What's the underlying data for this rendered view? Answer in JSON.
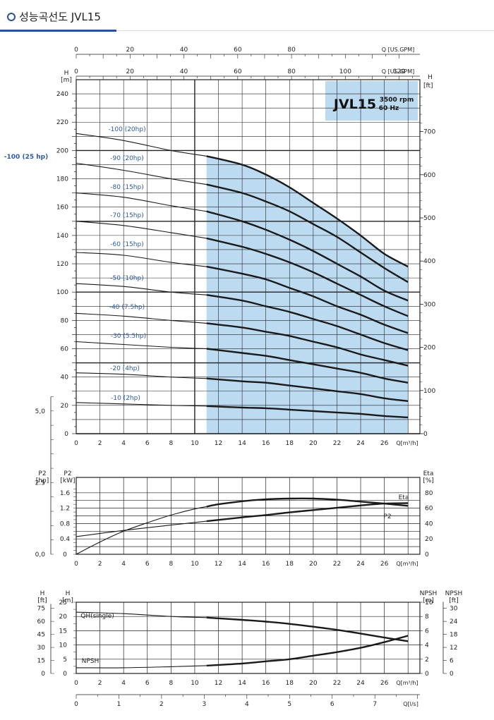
{
  "header": {
    "title": "성능곡선도 JVL15"
  },
  "colors": {
    "shade": "#bcdaf0",
    "curve": "#1a1a1a",
    "label_blue": "#2c5aa0",
    "grid": "#222222"
  },
  "chart_data": [
    {
      "type": "line",
      "panel": "head",
      "title": "JVL15",
      "subtitle_lines": [
        "3500 rpm",
        "60 Hz"
      ],
      "xlabel": "Q[m³/h]",
      "ylabel_left": "H [m]",
      "ylabel_right": "H [ft]",
      "xlim": [
        0,
        29
      ],
      "ylim": [
        0,
        250
      ],
      "x_ticks": [
        "0",
        "2",
        "4",
        "6",
        "8",
        "10",
        "12",
        "14",
        "16",
        "18",
        "20",
        "22",
        "24",
        "26"
      ],
      "y_ticks_left": [
        "0",
        "20",
        "40",
        "60",
        "80",
        "100",
        "120",
        "140",
        "160",
        "180",
        "200",
        "220",
        "240"
      ],
      "y_ticks_right": [
        "0",
        "100",
        "200",
        "300",
        "400",
        "500",
        "600",
        "700"
      ],
      "top_axis_gpm_outer": {
        "label": "Q [US.GPM]",
        "ticks": [
          "0",
          "20",
          "40",
          "60",
          "80"
        ]
      },
      "top_axis_gpm_inner": {
        "label": "Q [US.GPM]",
        "ticks": [
          "0",
          "20",
          "40",
          "60",
          "80",
          "100",
          "120"
        ]
      },
      "recommended_range_x": [
        11,
        28
      ],
      "side_label": "-100  (25 hp)",
      "series": [
        {
          "name": "-100 (20hp)",
          "x": [
            0,
            4,
            8,
            11,
            14,
            16,
            18,
            20,
            22,
            24,
            26,
            28
          ],
          "y": [
            212,
            207,
            200,
            196,
            190,
            183,
            174,
            163,
            152,
            140,
            127,
            118
          ]
        },
        {
          "name": "-90 (20hp)",
          "x": [
            0,
            4,
            8,
            11,
            14,
            16,
            18,
            20,
            22,
            24,
            26,
            28
          ],
          "y": [
            191,
            186,
            180,
            176,
            170,
            164,
            157,
            148,
            139,
            128,
            117,
            107
          ]
        },
        {
          "name": "-80 (15hp)",
          "x": [
            0,
            4,
            8,
            11,
            14,
            16,
            18,
            20,
            22,
            24,
            26,
            28
          ],
          "y": [
            170,
            167,
            161,
            157,
            150,
            144,
            137,
            129,
            120,
            111,
            101,
            94
          ]
        },
        {
          "name": "-70 (15hp)",
          "x": [
            0,
            4,
            8,
            11,
            14,
            16,
            18,
            20,
            22,
            24,
            26,
            28
          ],
          "y": [
            150,
            147,
            142,
            138,
            132,
            127,
            121,
            114,
            106,
            98,
            90,
            83
          ]
        },
        {
          "name": "-60 (15hp)",
          "x": [
            0,
            4,
            8,
            11,
            14,
            16,
            18,
            20,
            22,
            24,
            26,
            28
          ],
          "y": [
            128,
            126,
            121,
            118,
            113,
            109,
            103,
            97,
            90,
            84,
            77,
            71
          ]
        },
        {
          "name": "-50 (10hp)",
          "x": [
            0,
            4,
            8,
            11,
            14,
            16,
            18,
            20,
            22,
            24,
            26,
            28
          ],
          "y": [
            106,
            104,
            100,
            98,
            94,
            90,
            86,
            81,
            76,
            70,
            64,
            59
          ]
        },
        {
          "name": "-40 (7.5hp)",
          "x": [
            0,
            4,
            8,
            11,
            14,
            16,
            18,
            20,
            22,
            24,
            26,
            28
          ],
          "y": [
            85,
            83,
            80,
            78,
            75,
            72,
            69,
            65,
            61,
            56,
            52,
            48
          ]
        },
        {
          "name": "-30 (5.5hp)",
          "x": [
            0,
            4,
            8,
            11,
            14,
            16,
            18,
            20,
            22,
            24,
            26,
            28
          ],
          "y": [
            65,
            63,
            61,
            60,
            57,
            55,
            52,
            49,
            46,
            43,
            39,
            36
          ]
        },
        {
          "name": "-20 (4hp)",
          "x": [
            0,
            4,
            8,
            11,
            14,
            16,
            18,
            20,
            22,
            24,
            26,
            28
          ],
          "y": [
            43,
            42,
            40,
            39,
            37,
            36,
            34,
            32,
            30,
            28,
            25,
            23
          ]
        },
        {
          "name": "-10 (2hp)",
          "x": [
            0,
            4,
            8,
            11,
            14,
            16,
            18,
            20,
            22,
            24,
            26,
            28
          ],
          "y": [
            22,
            21,
            20,
            19.5,
            18.5,
            18,
            17,
            16,
            15,
            14,
            12.5,
            11.5
          ]
        }
      ]
    },
    {
      "type": "line",
      "panel": "power_efficiency",
      "xlabel": "Q[m³/h]",
      "ylabel_left_outer": "P2 [hp]",
      "ylabel_left": "P2 [kW]",
      "ylabel_right": "Eta [%]",
      "xlim": [
        0,
        29
      ],
      "ylim_kw": [
        0,
        2.0
      ],
      "ylim_eta": [
        0,
        100
      ],
      "x_ticks": [
        "0",
        "2",
        "4",
        "6",
        "8",
        "10",
        "12",
        "14",
        "16",
        "18",
        "20",
        "22",
        "24",
        "26"
      ],
      "y_ticks_hp": [
        "0,0",
        "2.5",
        "5,0"
      ],
      "y_ticks_kw": [
        "0",
        "0.4",
        "0.8",
        "1.2",
        "1.6"
      ],
      "y_ticks_eta": [
        "0",
        "20",
        "40",
        "60",
        "80"
      ],
      "series": [
        {
          "name": "Eta",
          "x": [
            0,
            2,
            4,
            6,
            8,
            10,
            12,
            14,
            16,
            18,
            20,
            22,
            24,
            26,
            28
          ],
          "y": [
            0,
            16,
            30,
            41,
            51,
            59,
            65,
            69,
            71.5,
            72.5,
            72.5,
            71,
            68.5,
            66,
            63
          ]
        },
        {
          "name": "P2",
          "x": [
            0,
            4,
            8,
            11,
            14,
            16,
            18,
            20,
            22,
            24,
            26,
            28
          ],
          "y": [
            0.46,
            0.62,
            0.76,
            0.86,
            0.96,
            1.02,
            1.09,
            1.15,
            1.21,
            1.27,
            1.32,
            1.33
          ]
        }
      ]
    },
    {
      "type": "line",
      "panel": "npsh",
      "xlabel": "Q[m³/h]",
      "bottom_axis": {
        "label": "Q[l/s]",
        "ticks": [
          "0",
          "1",
          "2",
          "3",
          "4",
          "5",
          "6",
          "7"
        ]
      },
      "ylabel_left_outer": "H [ft]",
      "ylabel_left": "H [m]",
      "ylabel_right": "NPSH [m]",
      "ylabel_right_outer": "NPSH [ft]",
      "xlim": [
        0,
        29
      ],
      "ylim": [
        0,
        25
      ],
      "x_ticks": [
        "0",
        "2",
        "4",
        "6",
        "8",
        "10",
        "12",
        "14",
        "16",
        "18",
        "20",
        "22",
        "24",
        "26"
      ],
      "y_ticks_ft": [
        "0",
        "15",
        "30",
        "45",
        "60",
        "75"
      ],
      "y_ticks_m": [
        "0",
        "5",
        "10",
        "15",
        "20",
        "25"
      ],
      "y_ticks_npsh_m": [
        "0",
        "2",
        "4",
        "6",
        "8",
        "10"
      ],
      "y_ticks_npsh_ft": [
        "0",
        "6",
        "12",
        "18",
        "24",
        "30"
      ],
      "series": [
        {
          "name": "QH(single)",
          "x": [
            0,
            4,
            8,
            11,
            14,
            16,
            18,
            20,
            22,
            24,
            26,
            28
          ],
          "y": [
            21.5,
            21,
            20,
            19.6,
            18.8,
            18.2,
            17.4,
            16.4,
            15.3,
            14,
            12.6,
            11.3
          ]
        },
        {
          "name": "NPSH",
          "x": [
            0,
            4,
            8,
            11,
            14,
            16,
            18,
            20,
            22,
            24,
            26,
            28
          ],
          "y": [
            0.8,
            0.8,
            0.95,
            1.1,
            1.4,
            1.7,
            2.0,
            2.5,
            3.0,
            3.6,
            4.4,
            5.3
          ]
        }
      ]
    }
  ]
}
